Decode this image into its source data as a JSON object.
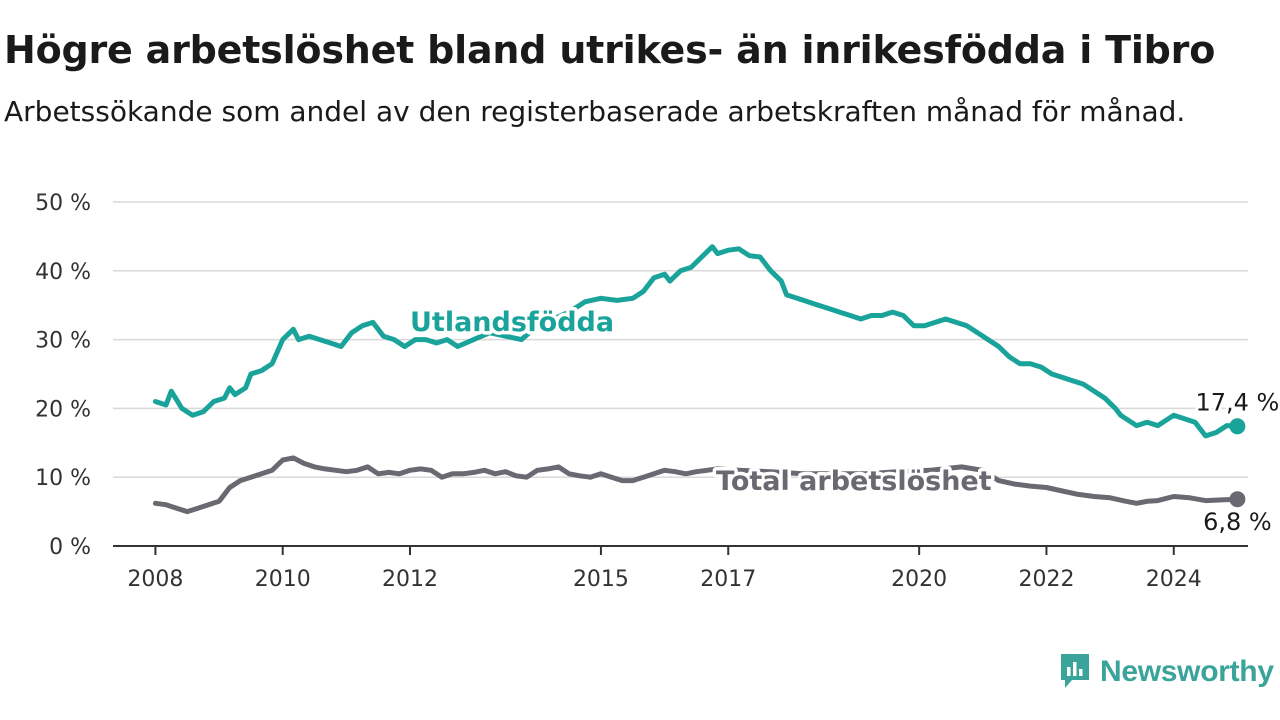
{
  "title": "Högre arbetslöshet bland utrikes- än inrikesfödda i Tibro",
  "subtitle": "Arbetssökande som andel av den registerbaserade arbetskraften månad för månad.",
  "brand": {
    "name": "Newsworthy",
    "icon": "newsworthy-logo-icon"
  },
  "colors": {
    "utlandsfodda": "#1aa39a",
    "total": "#6b6872",
    "grid": "#d9d9d9",
    "axis": "#333333",
    "brand": "#3aa39a"
  },
  "chart_data": {
    "type": "line",
    "x_ticks": [
      "2008",
      "2010",
      "2012",
      "2015",
      "2017",
      "2020",
      "2022",
      "2024"
    ],
    "y_ticks": [
      "0 %",
      "10 %",
      "20 %",
      "30 %",
      "40 %",
      "50 %"
    ],
    "ylim": [
      0,
      50
    ],
    "xlim": [
      "2007-05",
      "2025-03"
    ],
    "grid": true,
    "series": [
      {
        "name": "Utlandsfödda",
        "color": "#1aa39a",
        "end_label": "17,4 %",
        "points": [
          [
            "2008-01",
            21
          ],
          [
            "2008-03",
            20.5
          ],
          [
            "2008-04",
            22.5
          ],
          [
            "2008-06",
            20
          ],
          [
            "2008-08",
            19
          ],
          [
            "2008-10",
            19.5
          ],
          [
            "2008-12",
            21
          ],
          [
            "2009-02",
            21.5
          ],
          [
            "2009-03",
            23
          ],
          [
            "2009-04",
            22
          ],
          [
            "2009-06",
            23
          ],
          [
            "2009-07",
            25
          ],
          [
            "2009-09",
            25.5
          ],
          [
            "2009-11",
            26.5
          ],
          [
            "2010-01",
            30
          ],
          [
            "2010-03",
            31.5
          ],
          [
            "2010-04",
            30
          ],
          [
            "2010-06",
            30.5
          ],
          [
            "2010-08",
            30
          ],
          [
            "2010-10",
            29.5
          ],
          [
            "2010-12",
            29
          ],
          [
            "2011-02",
            31
          ],
          [
            "2011-04",
            32
          ],
          [
            "2011-06",
            32.5
          ],
          [
            "2011-08",
            30.5
          ],
          [
            "2011-10",
            30
          ],
          [
            "2011-12",
            29
          ],
          [
            "2012-02",
            30
          ],
          [
            "2012-04",
            30
          ],
          [
            "2012-06",
            29.5
          ],
          [
            "2012-08",
            30
          ],
          [
            "2012-10",
            29
          ],
          [
            "2013-01",
            30
          ],
          [
            "2013-04",
            31
          ],
          [
            "2013-07",
            30.5
          ],
          [
            "2013-10",
            30
          ],
          [
            "2014-01",
            32
          ],
          [
            "2014-04",
            33
          ],
          [
            "2014-07",
            34
          ],
          [
            "2014-10",
            35.5
          ],
          [
            "2015-01",
            36
          ],
          [
            "2015-04",
            35.7
          ],
          [
            "2015-07",
            36
          ],
          [
            "2015-09",
            37
          ],
          [
            "2015-11",
            39
          ],
          [
            "2016-01",
            39.5
          ],
          [
            "2016-02",
            38.5
          ],
          [
            "2016-04",
            40
          ],
          [
            "2016-06",
            40.5
          ],
          [
            "2016-08",
            42
          ],
          [
            "2016-10",
            43.5
          ],
          [
            "2016-11",
            42.5
          ],
          [
            "2017-01",
            43
          ],
          [
            "2017-03",
            43.2
          ],
          [
            "2017-05",
            42.2
          ],
          [
            "2017-07",
            42
          ],
          [
            "2017-09",
            40
          ],
          [
            "2017-11",
            38.5
          ],
          [
            "2017-12",
            36.5
          ],
          [
            "2018-02",
            36
          ],
          [
            "2018-04",
            35.5
          ],
          [
            "2018-06",
            35
          ],
          [
            "2018-08",
            34.5
          ],
          [
            "2018-10",
            34
          ],
          [
            "2018-12",
            33.5
          ],
          [
            "2019-02",
            33
          ],
          [
            "2019-04",
            33.5
          ],
          [
            "2019-06",
            33.5
          ],
          [
            "2019-08",
            34
          ],
          [
            "2019-10",
            33.5
          ],
          [
            "2019-12",
            32
          ],
          [
            "2020-02",
            32
          ],
          [
            "2020-04",
            32.5
          ],
          [
            "2020-06",
            33
          ],
          [
            "2020-08",
            32.5
          ],
          [
            "2020-10",
            32
          ],
          [
            "2020-12",
            31
          ],
          [
            "2021-02",
            30
          ],
          [
            "2021-04",
            29
          ],
          [
            "2021-06",
            27.5
          ],
          [
            "2021-08",
            26.5
          ],
          [
            "2021-10",
            26.5
          ],
          [
            "2021-12",
            26
          ],
          [
            "2022-02",
            25
          ],
          [
            "2022-04",
            24.5
          ],
          [
            "2022-06",
            24
          ],
          [
            "2022-08",
            23.5
          ],
          [
            "2022-10",
            22.5
          ],
          [
            "2022-12",
            21.5
          ],
          [
            "2023-02",
            20
          ],
          [
            "2023-03",
            19
          ],
          [
            "2023-05",
            18
          ],
          [
            "2023-06",
            17.5
          ],
          [
            "2023-08",
            18
          ],
          [
            "2023-10",
            17.5
          ],
          [
            "2023-11",
            18
          ],
          [
            "2024-01",
            19
          ],
          [
            "2024-03",
            18.5
          ],
          [
            "2024-05",
            18
          ],
          [
            "2024-07",
            16
          ],
          [
            "2024-09",
            16.5
          ],
          [
            "2024-11",
            17.5
          ],
          [
            "2025-01",
            17.4
          ]
        ]
      },
      {
        "name": "Total arbetslöshet",
        "color": "#6b6872",
        "end_label": "6,8 %",
        "points": [
          [
            "2008-01",
            6.2
          ],
          [
            "2008-03",
            6
          ],
          [
            "2008-05",
            5.5
          ],
          [
            "2008-07",
            5
          ],
          [
            "2008-09",
            5.5
          ],
          [
            "2008-11",
            6
          ],
          [
            "2009-01",
            6.5
          ],
          [
            "2009-03",
            8.5
          ],
          [
            "2009-05",
            9.5
          ],
          [
            "2009-07",
            10
          ],
          [
            "2009-09",
            10.5
          ],
          [
            "2009-11",
            11
          ],
          [
            "2010-01",
            12.5
          ],
          [
            "2010-03",
            12.8
          ],
          [
            "2010-05",
            12
          ],
          [
            "2010-07",
            11.5
          ],
          [
            "2010-09",
            11.2
          ],
          [
            "2010-11",
            11
          ],
          [
            "2011-01",
            10.8
          ],
          [
            "2011-03",
            11
          ],
          [
            "2011-05",
            11.5
          ],
          [
            "2011-07",
            10.5
          ],
          [
            "2011-09",
            10.7
          ],
          [
            "2011-11",
            10.5
          ],
          [
            "2012-01",
            11
          ],
          [
            "2012-03",
            11.2
          ],
          [
            "2012-05",
            11
          ],
          [
            "2012-07",
            10
          ],
          [
            "2012-09",
            10.5
          ],
          [
            "2012-11",
            10.5
          ],
          [
            "2013-01",
            10.7
          ],
          [
            "2013-03",
            11
          ],
          [
            "2013-05",
            10.5
          ],
          [
            "2013-07",
            10.8
          ],
          [
            "2013-09",
            10.2
          ],
          [
            "2013-11",
            10
          ],
          [
            "2014-01",
            11
          ],
          [
            "2014-03",
            11.2
          ],
          [
            "2014-05",
            11.5
          ],
          [
            "2014-07",
            10.5
          ],
          [
            "2014-09",
            10.2
          ],
          [
            "2014-11",
            10
          ],
          [
            "2015-01",
            10.5
          ],
          [
            "2015-03",
            10
          ],
          [
            "2015-05",
            9.5
          ],
          [
            "2015-07",
            9.5
          ],
          [
            "2015-09",
            10
          ],
          [
            "2015-11",
            10.5
          ],
          [
            "2016-01",
            11
          ],
          [
            "2016-03",
            10.8
          ],
          [
            "2016-05",
            10.5
          ],
          [
            "2016-07",
            10.8
          ],
          [
            "2016-09",
            11
          ],
          [
            "2016-11",
            11.2
          ],
          [
            "2017-03",
            11
          ],
          [
            "2017-09",
            10.8
          ],
          [
            "2018-03",
            10.5
          ],
          [
            "2018-09",
            10.5
          ],
          [
            "2019-03",
            10.5
          ],
          [
            "2019-09",
            10.8
          ],
          [
            "2020-03",
            11
          ],
          [
            "2020-09",
            11.5
          ],
          [
            "2021-01",
            11
          ],
          [
            "2021-04",
            9.5
          ],
          [
            "2021-07",
            9
          ],
          [
            "2021-10",
            8.7
          ],
          [
            "2022-01",
            8.5
          ],
          [
            "2022-04",
            8
          ],
          [
            "2022-07",
            7.5
          ],
          [
            "2022-10",
            7.2
          ],
          [
            "2023-01",
            7
          ],
          [
            "2023-04",
            6.5
          ],
          [
            "2023-06",
            6.2
          ],
          [
            "2023-08",
            6.5
          ],
          [
            "2023-10",
            6.6
          ],
          [
            "2024-01",
            7.2
          ],
          [
            "2024-04",
            7
          ],
          [
            "2024-07",
            6.6
          ],
          [
            "2024-10",
            6.7
          ],
          [
            "2025-01",
            6.8
          ]
        ]
      }
    ]
  }
}
